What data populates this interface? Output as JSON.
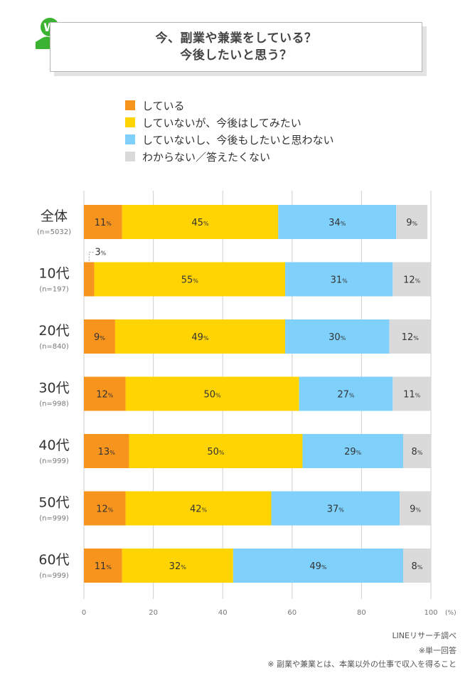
{
  "title": {
    "line1": "今、副業や兼業をしている？",
    "line2": "今後したいと思う？"
  },
  "logo_icon": "line-research-w-hand-icon",
  "colors": {
    "doing": "#f7941d",
    "want": "#ffd400",
    "not_want": "#7fd0fa",
    "unknown": "#dadada",
    "accent": "#3cb233"
  },
  "chart_data": {
    "type": "bar",
    "orientation": "horizontal",
    "stacked": true,
    "categories": [
      "全体",
      "10代",
      "20代",
      "30代",
      "40代",
      "50代",
      "60代"
    ],
    "category_sublabels": [
      "(n=5032)",
      "(n=197)",
      "(n=840)",
      "(n=998)",
      "(n=999)",
      "(n=999)",
      "(n=999)"
    ],
    "series": [
      {
        "name": "している",
        "values": [
          11,
          3,
          9,
          12,
          13,
          12,
          11
        ]
      },
      {
        "name": "していないが、今後はしてみたい",
        "values": [
          45,
          55,
          49,
          50,
          50,
          42,
          32
        ]
      },
      {
        "name": "していないし、今後もしたいと思わない",
        "values": [
          34,
          31,
          30,
          27,
          29,
          37,
          49
        ]
      },
      {
        "name": "わからない／答えたくない",
        "values": [
          9,
          12,
          12,
          11,
          8,
          9,
          8
        ]
      }
    ],
    "value_unit": "%",
    "xlim": [
      0,
      100
    ],
    "xticks": [
      0,
      20,
      40,
      60,
      80,
      100
    ],
    "x_unit_label": "(%)",
    "grid": true,
    "legend_position": "top"
  },
  "notes": {
    "source": "LINEリサーチ調べ",
    "single_answer": "※単一回答",
    "definition": "※ 副業や兼業とは、本業以外の仕事で収入を得ること"
  }
}
